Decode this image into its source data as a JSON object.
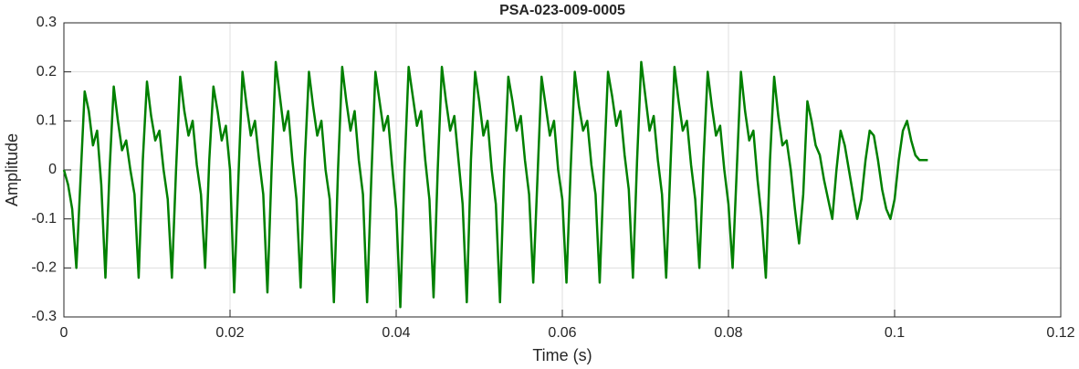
{
  "chart_data": {
    "type": "line",
    "title": "PSA-023-009-0005",
    "xlabel": "Time (s)",
    "ylabel": "Amplitude",
    "color": "#008000",
    "grid": true,
    "xlim": [
      0,
      0.12
    ],
    "xticks": [
      0,
      0.02,
      0.04,
      0.06,
      0.08,
      0.1,
      0.12
    ],
    "ylim": [
      -0.3,
      0.3
    ],
    "yticks": [
      -0.3,
      -0.2,
      -0.1,
      0,
      0.1,
      0.2,
      0.3
    ],
    "x": [
      0,
      0.0005,
      0.001,
      0.0015,
      0.002,
      0.0025,
      0.003,
      0.0035,
      0.004,
      0.0045,
      0.005,
      0.0055,
      0.006,
      0.0065,
      0.007,
      0.0075,
      0.008,
      0.0085,
      0.009,
      0.0095,
      0.01,
      0.0105,
      0.011,
      0.0115,
      0.012,
      0.0125,
      0.013,
      0.0135,
      0.014,
      0.0145,
      0.015,
      0.0155,
      0.016,
      0.0165,
      0.017,
      0.0175,
      0.018,
      0.0185,
      0.019,
      0.0195,
      0.02,
      0.0205,
      0.021,
      0.0215,
      0.022,
      0.0225,
      0.023,
      0.0235,
      0.024,
      0.0245,
      0.025,
      0.0255,
      0.026,
      0.0265,
      0.027,
      0.0275,
      0.028,
      0.0285,
      0.029,
      0.0295,
      0.03,
      0.0305,
      0.031,
      0.0315,
      0.032,
      0.0325,
      0.033,
      0.0335,
      0.034,
      0.0345,
      0.035,
      0.0355,
      0.036,
      0.0365,
      0.037,
      0.0375,
      0.038,
      0.0385,
      0.039,
      0.0395,
      0.04,
      0.0405,
      0.041,
      0.0415,
      0.042,
      0.0425,
      0.043,
      0.0435,
      0.044,
      0.0445,
      0.045,
      0.0455,
      0.046,
      0.0465,
      0.047,
      0.0475,
      0.048,
      0.0485,
      0.049,
      0.0495,
      0.05,
      0.0505,
      0.051,
      0.0515,
      0.052,
      0.0525,
      0.053,
      0.0535,
      0.054,
      0.0545,
      0.055,
      0.0555,
      0.056,
      0.0565,
      0.057,
      0.0575,
      0.058,
      0.0585,
      0.059,
      0.0595,
      0.06,
      0.0605,
      0.061,
      0.0615,
      0.062,
      0.0625,
      0.063,
      0.0635,
      0.064,
      0.0645,
      0.065,
      0.0655,
      0.066,
      0.0665,
      0.067,
      0.0675,
      0.068,
      0.0685,
      0.069,
      0.0695,
      0.07,
      0.0705,
      0.071,
      0.0715,
      0.072,
      0.0725,
      0.073,
      0.0735,
      0.074,
      0.0745,
      0.075,
      0.0755,
      0.076,
      0.0765,
      0.077,
      0.0775,
      0.078,
      0.0785,
      0.079,
      0.0795,
      0.08,
      0.0805,
      0.081,
      0.0815,
      0.082,
      0.0825,
      0.083,
      0.0835,
      0.084,
      0.0845,
      0.085,
      0.0855,
      0.086,
      0.0865,
      0.087,
      0.0875,
      0.088,
      0.0885,
      0.089,
      0.0895,
      0.09,
      0.0905,
      0.091,
      0.0915,
      0.092,
      0.0925,
      0.093,
      0.0935,
      0.094,
      0.0945,
      0.095,
      0.0955,
      0.096,
      0.0965,
      0.097,
      0.0975,
      0.098,
      0.0985,
      0.099,
      0.0995,
      0.1,
      0.1005,
      0.101,
      0.1015,
      0.102,
      0.1025,
      0.103,
      0.1035,
      0.104
    ],
    "values": [
      0,
      -0.03,
      -0.08,
      -0.2,
      -0.02,
      0.16,
      0.12,
      0.05,
      0.08,
      -0.03,
      -0.22,
      0,
      0.17,
      0.1,
      0.04,
      0.06,
      0,
      -0.05,
      -0.22,
      0.02,
      0.18,
      0.11,
      0.06,
      0.08,
      0,
      -0.06,
      -0.22,
      0,
      0.19,
      0.12,
      0.07,
      0.1,
      0.01,
      -0.05,
      -0.2,
      0.02,
      0.17,
      0.12,
      0.06,
      0.09,
      0,
      -0.25,
      -0.02,
      0.2,
      0.13,
      0.07,
      0.1,
      0.02,
      -0.05,
      -0.25,
      0,
      0.22,
      0.15,
      0.08,
      0.12,
      0.02,
      -0.06,
      -0.24,
      0.02,
      0.2,
      0.13,
      0.07,
      0.1,
      0,
      -0.06,
      -0.27,
      0,
      0.21,
      0.14,
      0.08,
      0.12,
      0.02,
      -0.05,
      -0.27,
      -0.02,
      0.2,
      0.14,
      0.08,
      0.11,
      0.01,
      -0.08,
      -0.28,
      0,
      0.21,
      0.15,
      0.09,
      0.12,
      0.02,
      -0.06,
      -0.26,
      0,
      0.21,
      0.14,
      0.08,
      0.11,
      0.02,
      -0.07,
      -0.27,
      0.02,
      0.2,
      0.14,
      0.07,
      0.1,
      0,
      -0.07,
      -0.27,
      0,
      0.19,
      0.14,
      0.08,
      0.11,
      0.02,
      -0.05,
      -0.23,
      -0.02,
      0.19,
      0.13,
      0.07,
      0.1,
      0,
      -0.06,
      -0.23,
      0,
      0.2,
      0.13,
      0.08,
      0.1,
      0.01,
      -0.05,
      -0.23,
      0,
      0.2,
      0.15,
      0.09,
      0.12,
      0.03,
      -0.04,
      -0.22,
      0.02,
      0.22,
      0.15,
      0.08,
      0.11,
      0.02,
      -0.05,
      -0.22,
      0,
      0.21,
      0.14,
      0.08,
      0.1,
      0.01,
      -0.06,
      -0.2,
      0.02,
      0.2,
      0.13,
      0.07,
      0.09,
      0,
      -0.07,
      -0.2,
      0,
      0.2,
      0.12,
      0.06,
      0.08,
      -0.02,
      -0.1,
      -0.22,
      0.02,
      0.19,
      0.11,
      0.05,
      0.06,
      0,
      -0.08,
      -0.15,
      -0.05,
      0.14,
      0.1,
      0.05,
      0.03,
      -0.02,
      -0.06,
      -0.1,
      0,
      0.08,
      0.05,
      0,
      -0.05,
      -0.1,
      -0.06,
      0.02,
      0.08,
      0.07,
      0.02,
      -0.04,
      -0.08,
      -0.1,
      -0.06,
      0.02,
      0.08,
      0.1,
      0.06,
      0.03,
      0.02,
      0.02,
      0.02
    ]
  }
}
